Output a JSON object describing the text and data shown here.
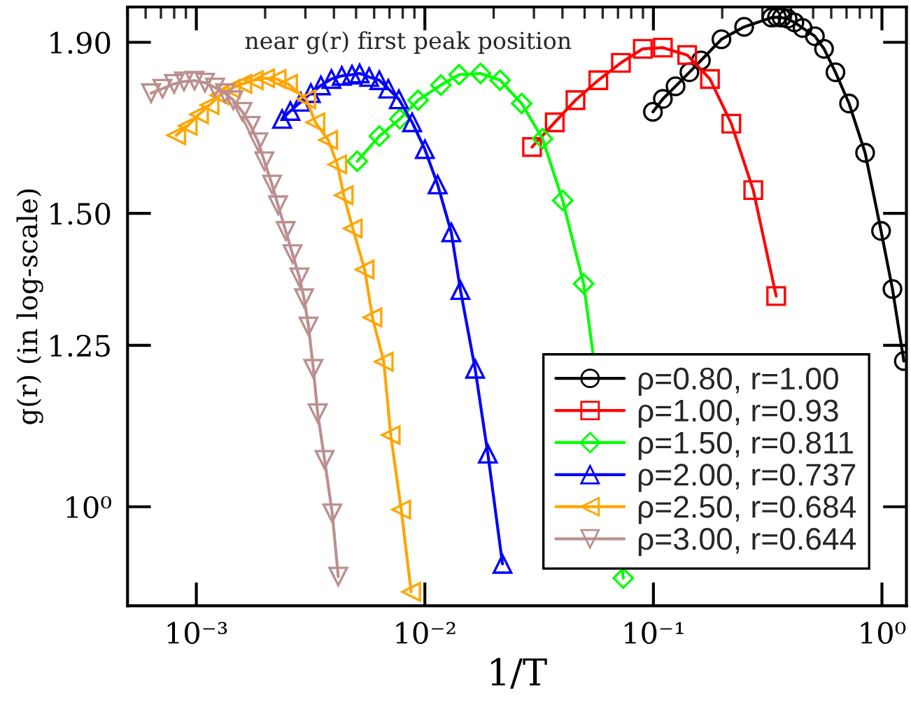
{
  "chart_data": {
    "type": "line",
    "xlabel": "1/T",
    "ylabel": "g(r) (in log-scale)",
    "annotations": [
      "near g(r) first peak position"
    ],
    "log": "xy",
    "grid": false,
    "legend": "bottom right",
    "xlim": [
      0.0005,
      1.28
    ],
    "ylim": [
      0.872,
      1.995
    ],
    "xticks": [
      {
        "value": 0.001,
        "label": "10⁻³"
      },
      {
        "value": 0.01,
        "label": "10⁻²"
      },
      {
        "value": 0.1,
        "label": "10⁻¹"
      },
      {
        "value": 1,
        "label": "10⁰"
      }
    ],
    "yticks": [
      {
        "value": 1,
        "label": "10⁰"
      },
      {
        "value": 1.25,
        "label": "1.25"
      },
      {
        "value": 1.5,
        "label": "1.50"
      },
      {
        "value": 1.9,
        "label": "1.90"
      }
    ],
    "series": [
      {
        "name": "ρ=0.80, r=1.00",
        "color": "#000000",
        "marker": "circle",
        "x": [
          0.0995,
          0.11,
          0.125,
          0.1437,
          0.1614,
          0.1985,
          0.2495,
          0.3286,
          0.3473,
          0.364,
          0.3864,
          0.414,
          0.4496,
          0.5089,
          0.558,
          0.626,
          0.718,
          0.844,
          0.991,
          1.112,
          1.247
        ],
        "values": [
          1.726,
          1.757,
          1.788,
          1.823,
          1.853,
          1.908,
          1.941,
          1.966,
          1.967,
          1.966,
          1.963,
          1.953,
          1.938,
          1.916,
          1.883,
          1.823,
          1.746,
          1.631,
          1.464,
          1.351,
          1.223
        ]
      },
      {
        "name": "ρ=1.00, r=0.93",
        "color": "#ff0000",
        "marker": "square",
        "x": [
          0.02944,
          0.037,
          0.0456,
          0.0574,
          0.0721,
          0.0899,
          0.11,
          0.1406,
          0.1768,
          0.2193,
          0.2735,
          0.3445
        ],
        "values": [
          1.644,
          1.701,
          1.754,
          1.803,
          1.847,
          1.883,
          1.886,
          1.867,
          1.806,
          1.698,
          1.549,
          1.338
        ]
      },
      {
        "name": "ρ=1.50, r=0.811",
        "color": "#00ff00",
        "marker": "diamond",
        "x": [
          0.00506,
          0.00632,
          0.00777,
          0.00934,
          0.01175,
          0.01412,
          0.01752,
          0.02134,
          0.02651,
          0.03273,
          0.0401,
          0.0495,
          0.0738
        ],
        "values": [
          1.612,
          1.669,
          1.709,
          1.754,
          1.791,
          1.817,
          1.82,
          1.803,
          1.746,
          1.663,
          1.527,
          1.361,
          0.906
        ]
      },
      {
        "name": "ρ=2.00, r=0.737",
        "color": "#0000ff",
        "marker": "triangle",
        "x": [
          0.002373,
          0.002579,
          0.002864,
          0.00317,
          0.003508,
          0.0039,
          0.00433,
          0.004797,
          0.005181,
          0.005705,
          0.00632,
          0.006918,
          0.007697,
          0.008796,
          0.01,
          0.01137,
          0.01305,
          0.01431,
          0.01659,
          0.01886,
          0.02186
        ],
        "values": [
          1.709,
          1.728,
          1.75,
          1.771,
          1.79,
          1.806,
          1.814,
          1.817,
          1.82,
          1.811,
          1.803,
          1.782,
          1.756,
          1.701,
          1.639,
          1.561,
          1.461,
          1.349,
          1.21,
          1.076,
          0.924
        ]
      },
      {
        "name": "ρ=2.50, r=0.684",
        "color": "#ffa500",
        "marker": "triangle-left",
        "x": [
          0.000817,
          0.000917,
          0.001028,
          0.001143,
          0.001264,
          0.001417,
          0.001591,
          0.001784,
          0.002001,
          0.002246,
          0.002519,
          0.003027,
          0.003319,
          0.003776,
          0.004139,
          0.004416,
          0.004835,
          0.005452,
          0.005897,
          0.00661,
          0.00709,
          0.00788,
          0.00871
        ],
        "values": [
          1.671,
          1.693,
          1.72,
          1.742,
          1.766,
          1.782,
          1.794,
          1.803,
          1.808,
          1.806,
          1.794,
          1.756,
          1.701,
          1.66,
          1.605,
          1.538,
          1.469,
          1.388,
          1.299,
          1.222,
          1.104,
          0.996,
          0.889
        ]
      },
      {
        "name": "ρ=3.00, r=0.644",
        "color": "#bc8f8f",
        "marker": "triangle-down",
        "x": [
          0.000634,
          0.000711,
          0.000799,
          0.000883,
          0.000982,
          0.001091,
          0.001208,
          0.001336,
          0.001451,
          0.001591,
          0.001729,
          0.001867,
          0.001984,
          0.002145,
          0.002278,
          0.00246,
          0.002636,
          0.002825,
          0.00296,
          0.003097,
          0.00325,
          0.003397,
          0.00364,
          0.003933,
          0.004178
        ],
        "values": [
          1.771,
          1.782,
          1.794,
          1.8,
          1.802,
          1.797,
          1.785,
          1.771,
          1.754,
          1.726,
          1.693,
          1.655,
          1.612,
          1.561,
          1.517,
          1.464,
          1.418,
          1.373,
          1.334,
          1.283,
          1.21,
          1.138,
          1.067,
          0.991,
          0.908
        ]
      }
    ]
  }
}
